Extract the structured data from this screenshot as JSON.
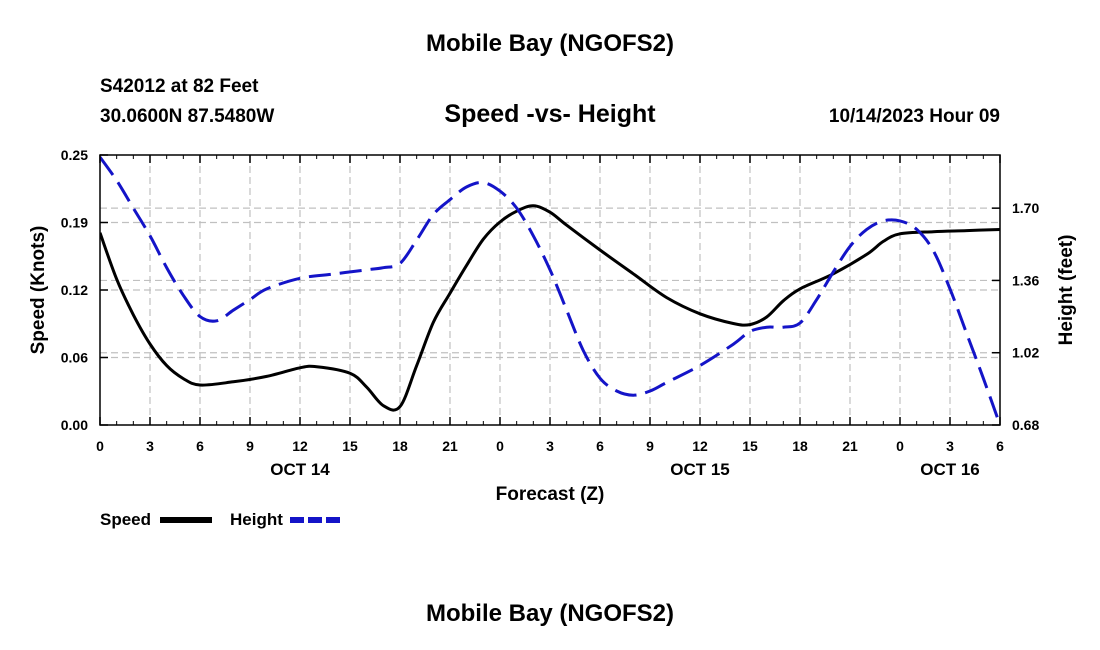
{
  "header": {
    "title": "Mobile Bay (NGOFS2)",
    "station": "S42012 at 82 Feet",
    "coords": "30.0600N  87.5480W",
    "subtitle": "Speed -vs- Height",
    "datetime": "10/14/2023 Hour 09"
  },
  "footer": {
    "title": "Mobile Bay (NGOFS2)"
  },
  "colors": {
    "speed": "#000000",
    "height": "#1414c8",
    "grid": "#c0c0c0"
  },
  "chart_data": {
    "type": "line",
    "xlabel": "Forecast (Z)",
    "ylabel_left": "Speed (Knots)",
    "ylabel_right": "Height (feet)",
    "xlim": [
      0,
      54
    ],
    "ylim_left": [
      0,
      0.25
    ],
    "ylim_right": [
      0.68,
      1.95
    ],
    "grid": true,
    "x_ticks": [
      {
        "x": 0,
        "label": "0"
      },
      {
        "x": 3,
        "label": "3"
      },
      {
        "x": 6,
        "label": "6"
      },
      {
        "x": 9,
        "label": "9"
      },
      {
        "x": 12,
        "label": "12"
      },
      {
        "x": 15,
        "label": "15"
      },
      {
        "x": 18,
        "label": "18"
      },
      {
        "x": 21,
        "label": "21"
      },
      {
        "x": 24,
        "label": "0"
      },
      {
        "x": 27,
        "label": "3"
      },
      {
        "x": 30,
        "label": "6"
      },
      {
        "x": 33,
        "label": "9"
      },
      {
        "x": 36,
        "label": "12"
      },
      {
        "x": 39,
        "label": "15"
      },
      {
        "x": 42,
        "label": "18"
      },
      {
        "x": 45,
        "label": "21"
      },
      {
        "x": 48,
        "label": "0"
      },
      {
        "x": 51,
        "label": "3"
      },
      {
        "x": 54,
        "label": "6"
      }
    ],
    "date_labels": [
      {
        "x": 12,
        "label": "OCT 14"
      },
      {
        "x": 36,
        "label": "OCT 15"
      },
      {
        "x": 51,
        "label": "OCT 16"
      }
    ],
    "y_ticks_left": [
      {
        "v": 0.0,
        "label": "0.00"
      },
      {
        "v": 0.0625,
        "label": "0.06"
      },
      {
        "v": 0.125,
        "label": "0.12"
      },
      {
        "v": 0.1875,
        "label": "0.19"
      },
      {
        "v": 0.25,
        "label": "0.25"
      }
    ],
    "y_ticks_right": [
      {
        "v": 0.68,
        "label": "0.68"
      },
      {
        "v": 1.02,
        "label": "1.02"
      },
      {
        "v": 1.36,
        "label": "1.36"
      },
      {
        "v": 1.7,
        "label": "1.70"
      }
    ],
    "series": [
      {
        "name": "Speed",
        "axis": "left",
        "style": "solid",
        "x": [
          0,
          1,
          2,
          3,
          4,
          5,
          6,
          8,
          10,
          12,
          13,
          15,
          16,
          17,
          18,
          19,
          20,
          21,
          22,
          23,
          24,
          25,
          26,
          27,
          28,
          30,
          32,
          34,
          36,
          38,
          39,
          40,
          41,
          42,
          44,
          46,
          47,
          48,
          50,
          52,
          54
        ],
        "y": [
          0.178,
          0.135,
          0.102,
          0.075,
          0.055,
          0.043,
          0.037,
          0.04,
          0.045,
          0.053,
          0.054,
          0.048,
          0.035,
          0.018,
          0.017,
          0.055,
          0.095,
          0.122,
          0.148,
          0.172,
          0.188,
          0.198,
          0.203,
          0.197,
          0.185,
          0.162,
          0.14,
          0.118,
          0.103,
          0.094,
          0.093,
          0.1,
          0.115,
          0.126,
          0.14,
          0.158,
          0.17,
          0.177,
          0.179,
          0.18,
          0.181
        ]
      },
      {
        "name": "Height",
        "axis": "right",
        "style": "dashed",
        "x": [
          0,
          1,
          2,
          3,
          4,
          5,
          6,
          7,
          8,
          9,
          10,
          12,
          14,
          16,
          17,
          18,
          19,
          20,
          21,
          22,
          23,
          24,
          25,
          26,
          27,
          28,
          29,
          30,
          31,
          32,
          33,
          34,
          36,
          38,
          39,
          40,
          41,
          42,
          43,
          44,
          45,
          46,
          47,
          48,
          49,
          50,
          51,
          52,
          53,
          54
        ],
        "y": [
          1.94,
          1.83,
          1.7,
          1.57,
          1.42,
          1.29,
          1.19,
          1.17,
          1.22,
          1.27,
          1.32,
          1.37,
          1.39,
          1.41,
          1.42,
          1.44,
          1.55,
          1.67,
          1.74,
          1.8,
          1.82,
          1.78,
          1.7,
          1.57,
          1.41,
          1.22,
          1.03,
          0.9,
          0.84,
          0.82,
          0.84,
          0.88,
          0.96,
          1.06,
          1.12,
          1.14,
          1.14,
          1.16,
          1.27,
          1.4,
          1.52,
          1.6,
          1.64,
          1.64,
          1.6,
          1.5,
          1.32,
          1.11,
          0.9,
          0.68
        ]
      }
    ]
  },
  "legend": {
    "speed_label": "Speed",
    "height_label": "Height"
  }
}
